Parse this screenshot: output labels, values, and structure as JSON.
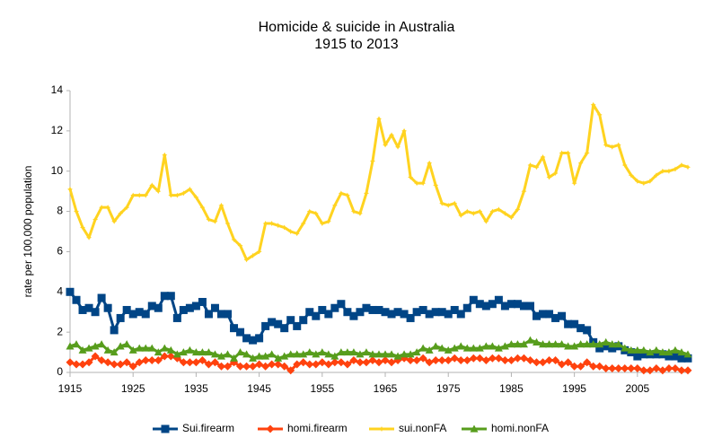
{
  "chart_data": {
    "type": "line",
    "title": "Homicide & suicide in Australia",
    "subtitle": "1915 to 2013",
    "y_label": "rate per 100,000 population",
    "x": [
      1915,
      1916,
      1917,
      1918,
      1919,
      1920,
      1921,
      1922,
      1923,
      1924,
      1925,
      1926,
      1927,
      1928,
      1929,
      1930,
      1931,
      1932,
      1933,
      1934,
      1935,
      1936,
      1937,
      1938,
      1939,
      1940,
      1941,
      1942,
      1943,
      1944,
      1945,
      1946,
      1947,
      1948,
      1949,
      1950,
      1951,
      1952,
      1953,
      1954,
      1955,
      1956,
      1957,
      1958,
      1959,
      1960,
      1961,
      1962,
      1963,
      1964,
      1965,
      1966,
      1967,
      1968,
      1969,
      1970,
      1971,
      1972,
      1973,
      1974,
      1975,
      1976,
      1977,
      1978,
      1979,
      1980,
      1981,
      1982,
      1983,
      1984,
      1985,
      1986,
      1987,
      1988,
      1989,
      1990,
      1991,
      1992,
      1993,
      1994,
      1995,
      1996,
      1997,
      1998,
      1999,
      2000,
      2001,
      2002,
      2003,
      2004,
      2005,
      2006,
      2007,
      2008,
      2009,
      2010,
      2011,
      2012,
      2013
    ],
    "xlim": [
      1915,
      2013
    ],
    "xticks": [
      1915,
      1925,
      1935,
      1945,
      1955,
      1965,
      1975,
      1985,
      1995,
      2005
    ],
    "ylim": [
      0,
      14
    ],
    "yticks": [
      0,
      2,
      4,
      6,
      8,
      10,
      12,
      14
    ],
    "grid": false,
    "legend": "bottom",
    "series": [
      {
        "name": "Sui.firearm",
        "color": "#004586",
        "marker": "square",
        "values": [
          4.0,
          3.6,
          3.1,
          3.2,
          3.0,
          3.7,
          3.2,
          2.1,
          2.7,
          3.1,
          2.9,
          3.0,
          2.9,
          3.3,
          3.2,
          3.8,
          3.8,
          2.7,
          3.1,
          3.2,
          3.3,
          3.5,
          2.9,
          3.2,
          2.9,
          2.9,
          2.2,
          2.0,
          1.7,
          1.6,
          1.7,
          2.3,
          2.5,
          2.4,
          2.2,
          2.6,
          2.3,
          2.6,
          3.0,
          2.8,
          3.1,
          2.9,
          3.2,
          3.4,
          3.0,
          2.8,
          3.0,
          3.2,
          3.1,
          3.1,
          3.0,
          2.9,
          3.0,
          2.9,
          2.7,
          3.0,
          3.1,
          2.9,
          3.0,
          3.0,
          2.9,
          3.1,
          2.9,
          3.2,
          3.6,
          3.4,
          3.3,
          3.4,
          3.6,
          3.3,
          3.4,
          3.4,
          3.3,
          3.3,
          2.8,
          2.9,
          2.9,
          2.7,
          2.8,
          2.4,
          2.4,
          2.2,
          2.1,
          1.5,
          1.2,
          1.3,
          1.2,
          1.3,
          1.1,
          1.0,
          0.8,
          0.9,
          0.9,
          0.9,
          0.9,
          0.8,
          0.8,
          0.7,
          0.7
        ]
      },
      {
        "name": "homi.firearm",
        "color": "#ff420e",
        "marker": "diamond",
        "values": [
          0.5,
          0.4,
          0.4,
          0.5,
          0.8,
          0.6,
          0.5,
          0.4,
          0.4,
          0.5,
          0.3,
          0.5,
          0.6,
          0.6,
          0.6,
          0.8,
          0.8,
          0.7,
          0.5,
          0.5,
          0.5,
          0.6,
          0.4,
          0.5,
          0.3,
          0.3,
          0.5,
          0.3,
          0.3,
          0.3,
          0.4,
          0.3,
          0.4,
          0.4,
          0.3,
          0.1,
          0.4,
          0.5,
          0.4,
          0.4,
          0.5,
          0.4,
          0.5,
          0.5,
          0.4,
          0.6,
          0.5,
          0.5,
          0.6,
          0.5,
          0.6,
          0.5,
          0.6,
          0.7,
          0.6,
          0.6,
          0.7,
          0.5,
          0.6,
          0.6,
          0.6,
          0.7,
          0.6,
          0.6,
          0.7,
          0.7,
          0.6,
          0.7,
          0.7,
          0.6,
          0.6,
          0.7,
          0.7,
          0.6,
          0.5,
          0.5,
          0.6,
          0.6,
          0.4,
          0.5,
          0.3,
          0.3,
          0.5,
          0.3,
          0.3,
          0.2,
          0.2,
          0.2,
          0.2,
          0.2,
          0.2,
          0.1,
          0.1,
          0.2,
          0.1,
          0.2,
          0.2,
          0.1,
          0.1
        ]
      },
      {
        "name": "sui.nonFA",
        "color": "#ffd320",
        "marker": "star",
        "values": [
          9.1,
          8.0,
          7.2,
          6.7,
          7.6,
          8.2,
          8.2,
          7.5,
          7.9,
          8.2,
          8.8,
          8.8,
          8.8,
          9.3,
          9.0,
          10.8,
          8.8,
          8.8,
          8.9,
          9.1,
          8.7,
          8.2,
          7.6,
          7.5,
          8.3,
          7.4,
          6.6,
          6.3,
          5.6,
          5.8,
          6.0,
          7.4,
          7.4,
          7.3,
          7.2,
          7.0,
          6.9,
          7.4,
          8.0,
          7.9,
          7.4,
          7.5,
          8.3,
          8.9,
          8.8,
          8.0,
          7.9,
          8.9,
          10.5,
          12.6,
          11.3,
          11.8,
          11.2,
          12.0,
          9.7,
          9.4,
          9.4,
          10.4,
          9.3,
          8.4,
          8.3,
          8.4,
          7.8,
          8.0,
          7.9,
          8.0,
          7.5,
          8.0,
          8.1,
          7.9,
          7.7,
          8.1,
          9.0,
          10.3,
          10.2,
          10.7,
          9.7,
          9.9,
          10.9,
          10.9,
          9.4,
          10.4,
          10.9,
          13.3,
          12.8,
          11.3,
          11.2,
          11.3,
          10.3,
          9.8,
          9.5,
          9.4,
          9.5,
          9.8,
          10.0,
          10.0,
          10.1,
          10.3,
          10.2
        ]
      },
      {
        "name": "homi.nonFA",
        "color": "#579d1c",
        "marker": "triangle",
        "values": [
          1.3,
          1.4,
          1.1,
          1.2,
          1.3,
          1.4,
          1.1,
          1.0,
          1.3,
          1.4,
          1.1,
          1.2,
          1.2,
          1.2,
          1.0,
          1.2,
          1.1,
          0.9,
          1.0,
          1.1,
          1.0,
          1.0,
          1.0,
          0.9,
          0.8,
          0.9,
          0.7,
          1.0,
          0.9,
          0.7,
          0.8,
          0.8,
          0.9,
          0.7,
          0.8,
          0.9,
          0.9,
          0.9,
          1.0,
          0.9,
          1.0,
          0.9,
          0.8,
          1.0,
          1.0,
          1.0,
          0.9,
          1.0,
          0.9,
          0.9,
          0.9,
          0.9,
          0.8,
          0.9,
          0.9,
          1.0,
          1.2,
          1.1,
          1.3,
          1.2,
          1.1,
          1.2,
          1.3,
          1.2,
          1.2,
          1.2,
          1.3,
          1.3,
          1.2,
          1.3,
          1.4,
          1.4,
          1.4,
          1.6,
          1.5,
          1.4,
          1.4,
          1.4,
          1.4,
          1.3,
          1.3,
          1.4,
          1.4,
          1.4,
          1.4,
          1.5,
          1.4,
          1.4,
          1.2,
          1.1,
          1.1,
          1.1,
          1.0,
          1.1,
          1.0,
          1.0,
          1.1,
          1.0,
          0.9
        ]
      }
    ]
  }
}
